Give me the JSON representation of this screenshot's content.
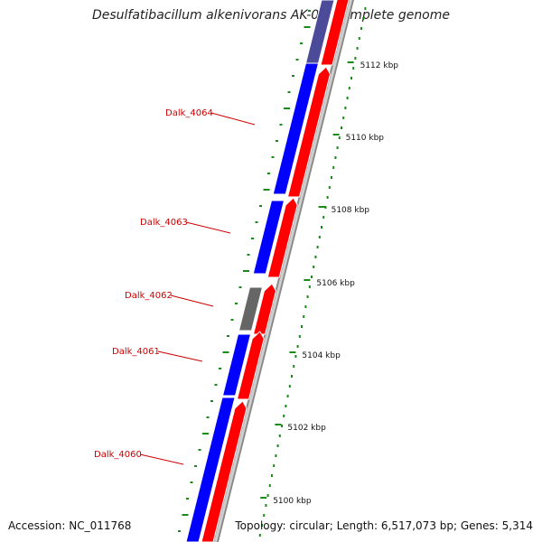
{
  "title": "Desulfatibacillum alkenivorans AK-01, complete genome",
  "accession_text": "Accession: NC_011768",
  "topology_text": "Topology: circular; Length: 6,517,073 bp; Genes: 5,314",
  "colors": {
    "reverse_strand": "#0000ff",
    "forward_strand": "#ff0000",
    "faded_reverse": "#4b4b9a",
    "pseudo_gene": "#666666",
    "backbone": "#8a8a8a",
    "ticks": "#1a8a1a",
    "label": "#cc0000"
  },
  "ruler_labels": [
    "5112 kbp",
    "5110 kbp",
    "5108 kbp",
    "5106 kbp",
    "5104 kbp",
    "5102 kbp",
    "5100 kbp"
  ],
  "gene_labels": [
    "Dalk_4064",
    "Dalk_4063",
    "Dalk_4062",
    "Dalk_4061",
    "Dalk_4060"
  ]
}
